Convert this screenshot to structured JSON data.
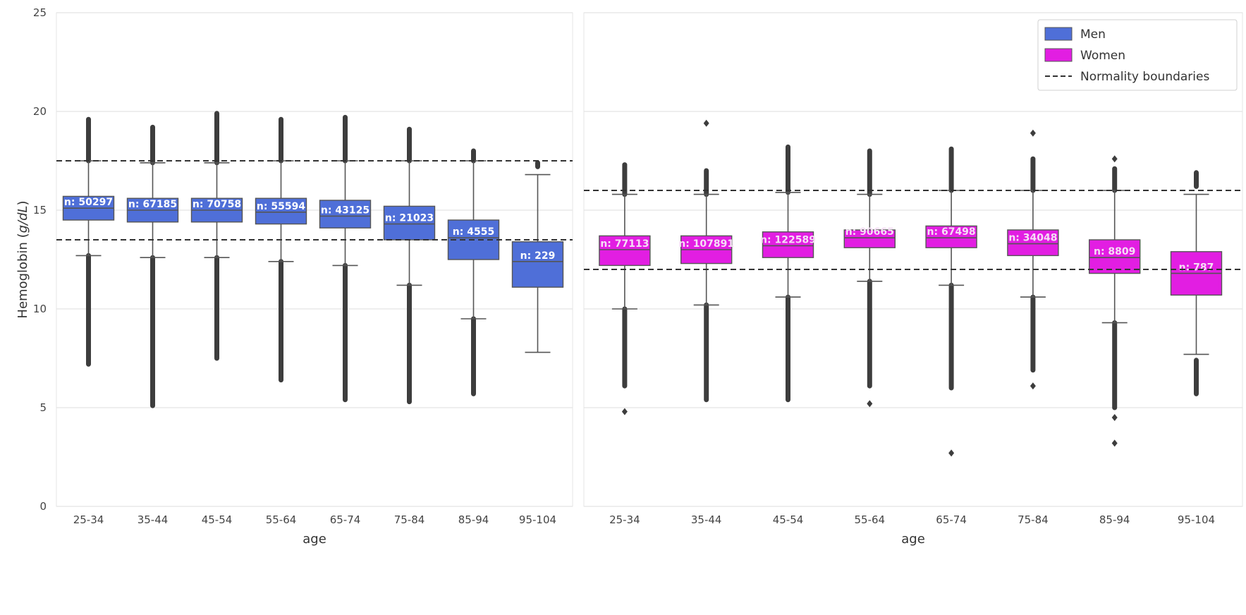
{
  "chart_data": [
    {
      "type": "box",
      "panel": "men",
      "ylabel": "Hemoglobin (g/dL)",
      "xlabel": "age",
      "ylim": [
        0,
        25
      ],
      "yticks": [
        0,
        5,
        10,
        15,
        20,
        25
      ],
      "grid": true,
      "color": "#4f6fd8",
      "boundaries": [
        13.5,
        17.5
      ],
      "categories": [
        "25-34",
        "35-44",
        "45-54",
        "55-64",
        "65-74",
        "75-84",
        "85-94",
        "95-104"
      ],
      "boxes": [
        {
          "n": "n: 50297",
          "whislo": 12.7,
          "q1": 14.5,
          "med": 15.1,
          "q3": 15.7,
          "whishi": 17.5,
          "flier_lo": [
            7.2,
            12.7
          ],
          "flier_hi": [
            17.5,
            19.6
          ]
        },
        {
          "n": "n: 67185",
          "whislo": 12.6,
          "q1": 14.4,
          "med": 15.0,
          "q3": 15.6,
          "whishi": 17.4,
          "flier_lo": [
            5.1,
            12.6
          ],
          "flier_hi": [
            17.4,
            19.2
          ]
        },
        {
          "n": "n: 70758",
          "whislo": 12.6,
          "q1": 14.4,
          "med": 15.0,
          "q3": 15.6,
          "whishi": 17.4,
          "flier_lo": [
            7.5,
            12.6
          ],
          "flier_hi": [
            17.4,
            19.9
          ]
        },
        {
          "n": "n: 55594",
          "whislo": 12.4,
          "q1": 14.3,
          "med": 14.9,
          "q3": 15.6,
          "whishi": 17.5,
          "flier_lo": [
            6.4,
            12.4
          ],
          "flier_hi": [
            17.5,
            19.6
          ]
        },
        {
          "n": "n: 43125",
          "whislo": 12.2,
          "q1": 14.1,
          "med": 14.7,
          "q3": 15.5,
          "whishi": 17.5,
          "flier_lo": [
            5.4,
            12.2
          ],
          "flier_hi": [
            17.5,
            19.7
          ]
        },
        {
          "n": "n: 21023",
          "whislo": 11.2,
          "q1": 13.5,
          "med": 14.3,
          "q3": 15.2,
          "whishi": 17.5,
          "flier_lo": [
            5.3,
            11.2
          ],
          "flier_hi": [
            17.5,
            19.1
          ]
        },
        {
          "n": "n: 4555",
          "whislo": 9.5,
          "q1": 12.5,
          "med": 13.6,
          "q3": 14.5,
          "whishi": 17.5,
          "flier_lo": [
            5.7,
            9.5
          ],
          "flier_hi": [
            17.5,
            18.0
          ]
        },
        {
          "n": "n: 229",
          "whislo": 7.8,
          "q1": 11.1,
          "med": 12.4,
          "q3": 13.4,
          "whishi": 16.8,
          "flier_lo": [],
          "flier_hi": [
            17.2,
            17.4
          ]
        }
      ]
    },
    {
      "type": "box",
      "panel": "women",
      "xlabel": "age",
      "ylim": [
        0,
        25
      ],
      "grid": true,
      "color": "#e21ee2",
      "boundaries": [
        12.0,
        16.0
      ],
      "categories": [
        "25-34",
        "35-44",
        "45-54",
        "55-64",
        "65-74",
        "75-84",
        "85-94",
        "95-104"
      ],
      "boxes": [
        {
          "n": "n: 77113",
          "whislo": 10.0,
          "q1": 12.2,
          "med": 13.0,
          "q3": 13.7,
          "whishi": 15.8,
          "flier_lo": [
            6.1,
            10.0
          ],
          "flier_hi": [
            15.8,
            17.3
          ],
          "extra": [
            4.8
          ]
        },
        {
          "n": "n: 107891",
          "whislo": 10.2,
          "q1": 12.3,
          "med": 13.0,
          "q3": 13.7,
          "whishi": 15.8,
          "flier_lo": [
            5.4,
            10.2
          ],
          "flier_hi": [
            15.8,
            17.0
          ],
          "extra": [
            19.4
          ]
        },
        {
          "n": "n: 122589",
          "whislo": 10.6,
          "q1": 12.6,
          "med": 13.2,
          "q3": 13.9,
          "whishi": 15.9,
          "flier_lo": [
            5.4,
            10.6
          ],
          "flier_hi": [
            15.9,
            18.2
          ],
          "extra": []
        },
        {
          "n": "n: 90665",
          "whislo": 11.4,
          "q1": 13.1,
          "med": 13.6,
          "q3": 14.0,
          "whishi": 15.8,
          "flier_lo": [
            6.1,
            11.4
          ],
          "flier_hi": [
            15.8,
            18.0
          ],
          "extra": [
            5.2
          ]
        },
        {
          "n": "n: 67498",
          "whislo": 11.2,
          "q1": 13.1,
          "med": 13.6,
          "q3": 14.2,
          "whishi": 16.0,
          "flier_lo": [
            6.0,
            11.2
          ],
          "flier_hi": [
            16.0,
            18.1
          ],
          "extra": [
            2.7
          ]
        },
        {
          "n": "n: 34048",
          "whislo": 10.6,
          "q1": 12.7,
          "med": 13.3,
          "q3": 14.0,
          "whishi": 16.0,
          "flier_lo": [
            6.9,
            10.6
          ],
          "flier_hi": [
            16.0,
            17.6
          ],
          "extra": [
            6.1,
            18.9
          ]
        },
        {
          "n": "n: 8809",
          "whislo": 9.3,
          "q1": 11.8,
          "med": 12.6,
          "q3": 13.5,
          "whishi": 16.0,
          "flier_lo": [
            5.0,
            9.3
          ],
          "flier_hi": [
            16.0,
            17.1
          ],
          "extra": [
            4.5,
            3.2,
            17.6
          ]
        },
        {
          "n": "n: 787",
          "whislo": 7.7,
          "q1": 10.7,
          "med": 11.8,
          "q3": 12.9,
          "whishi": 15.8,
          "flier_lo": [
            5.7,
            7.4
          ],
          "flier_hi": [
            16.2,
            16.9
          ],
          "extra": []
        }
      ]
    }
  ],
  "legend": {
    "placement": "top-right",
    "items": [
      {
        "label": "Men",
        "color": "#4f6fd8",
        "kind": "patch"
      },
      {
        "label": "Women",
        "color": "#e21ee2",
        "kind": "patch"
      },
      {
        "label": "Normality boundaries",
        "color": "#333333",
        "kind": "dashed-line"
      }
    ]
  }
}
